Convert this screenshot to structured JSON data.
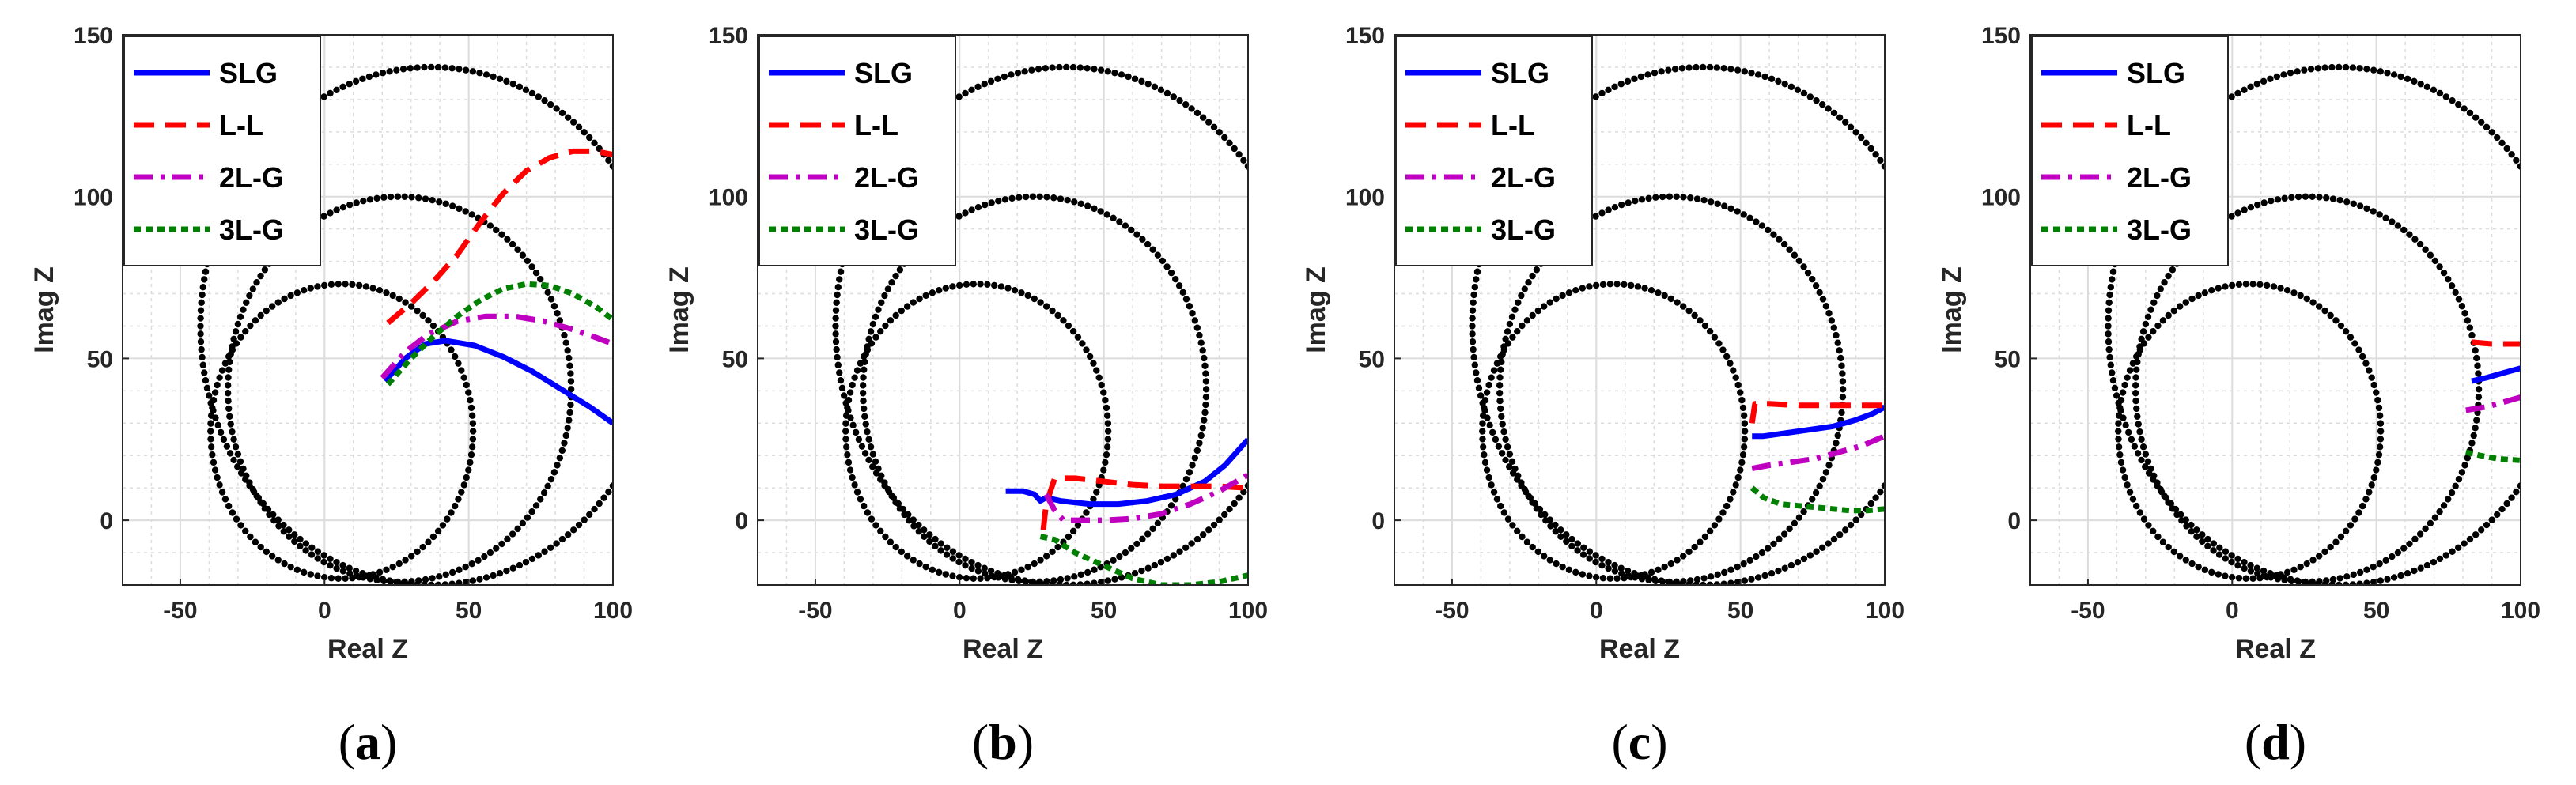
{
  "colors": {
    "SLG": "#0000ff",
    "L-L": "#ff0000",
    "2L-G": "#c000c0",
    "3L-G": "#008000",
    "circles": "#000000",
    "grid": "#dcdcdc"
  },
  "chart_data": [
    {
      "type": "line",
      "panel_label": [
        "(",
        "a",
        ")"
      ],
      "xlabel": "Real Z",
      "ylabel": "Imag Z",
      "xlim": [
        -70,
        100
      ],
      "ylim": [
        -20,
        150
      ],
      "xticks": [
        -50,
        0,
        50,
        100
      ],
      "yticks": [
        0,
        50,
        100,
        150
      ],
      "grid": true,
      "legend_position": "top-left",
      "characteristic_circles": [
        {
          "center": [
            6,
            27.5
          ],
          "radius": 45.5
        },
        {
          "center": [
            26,
            40.5
          ],
          "radius": 59.5
        },
        {
          "center": [
            37,
            60
          ],
          "radius": 80
        }
      ],
      "series": [
        {
          "name": "SLG",
          "style": "solid",
          "x": [
            21,
            28,
            35,
            42,
            52,
            62,
            72,
            82,
            92,
            100
          ],
          "y": [
            43,
            50,
            54.5,
            55.5,
            54,
            50.5,
            46,
            40.5,
            35,
            30
          ]
        },
        {
          "name": "L-L",
          "style": "dashed",
          "x": [
            22,
            30,
            38,
            46,
            54,
            62,
            70,
            78,
            86,
            94,
            100
          ],
          "y": [
            61,
            67,
            74,
            82,
            92,
            101,
            108,
            112,
            114,
            114,
            113
          ]
        },
        {
          "name": "2L-G",
          "style": "dashdot",
          "x": [
            20,
            28,
            36,
            46,
            56,
            66,
            76,
            86,
            94,
            100
          ],
          "y": [
            44,
            52,
            57.5,
            61.5,
            63,
            63,
            61.5,
            59,
            56.5,
            54.5
          ]
        },
        {
          "name": "3L-G",
          "style": "dotted",
          "x": [
            22,
            30,
            38,
            46,
            54,
            62,
            70,
            78,
            86,
            94,
            100
          ],
          "y": [
            42,
            50,
            57,
            63,
            68,
            71.5,
            73,
            72.5,
            70,
            66,
            62
          ]
        }
      ]
    },
    {
      "type": "line",
      "panel_label": [
        "(",
        "b",
        ")"
      ],
      "xlabel": "Real Z",
      "ylabel": "Imag Z",
      "xlim": [
        -70,
        100
      ],
      "ylim": [
        -20,
        150
      ],
      "xticks": [
        -50,
        0,
        50,
        100
      ],
      "yticks": [
        0,
        50,
        100,
        150
      ],
      "grid": true,
      "legend_position": "top-left",
      "characteristic_circles": [
        {
          "center": [
            6,
            27.5
          ],
          "radius": 45.5
        },
        {
          "center": [
            26,
            40.5
          ],
          "radius": 59.5
        },
        {
          "center": [
            37,
            60
          ],
          "radius": 80
        }
      ],
      "series": [
        {
          "name": "SLG",
          "style": "solid",
          "x": [
            16,
            22,
            26,
            28,
            30,
            35,
            45,
            55,
            65,
            75,
            85,
            92,
            100
          ],
          "y": [
            9,
            9,
            8,
            6,
            7,
            6,
            5,
            5,
            6,
            8,
            12,
            17,
            25
          ]
        },
        {
          "name": "L-L",
          "style": "dashed",
          "x": [
            29,
            30,
            33,
            40,
            50,
            60,
            70,
            80,
            90,
            100
          ],
          "y": [
            -3,
            5,
            13,
            13,
            12,
            11,
            10.5,
            10.5,
            10.5,
            10
          ]
        },
        {
          "name": "2L-G",
          "style": "dashdot",
          "x": [
            30,
            33,
            36,
            40,
            50,
            60,
            70,
            80,
            90,
            100
          ],
          "y": [
            8,
            3,
            0,
            0,
            0,
            0.5,
            2,
            5,
            9,
            14
          ]
        },
        {
          "name": "3L-G",
          "style": "dotted",
          "x": [
            28,
            33,
            40,
            50,
            60,
            70,
            80,
            90,
            100
          ],
          "y": [
            -5,
            -6,
            -10,
            -14,
            -18,
            -20,
            -20,
            -19,
            -17
          ]
        }
      ]
    },
    {
      "type": "line",
      "panel_label": [
        "(",
        "c",
        ")"
      ],
      "xlabel": "Real Z",
      "ylabel": "Imag Z",
      "xlim": [
        -70,
        100
      ],
      "ylim": [
        -20,
        150
      ],
      "xticks": [
        -50,
        0,
        50,
        100
      ],
      "yticks": [
        0,
        50,
        100,
        150
      ],
      "grid": true,
      "legend_position": "top-left",
      "characteristic_circles": [
        {
          "center": [
            6,
            27.5
          ],
          "radius": 45.5
        },
        {
          "center": [
            26,
            40.5
          ],
          "radius": 59.5
        },
        {
          "center": [
            37,
            60
          ],
          "radius": 80
        }
      ],
      "series": [
        {
          "name": "SLG",
          "style": "solid",
          "x": [
            54,
            58,
            66,
            74,
            82,
            90,
            96,
            100
          ],
          "y": [
            26,
            26,
            27,
            28,
            29,
            31,
            33,
            35
          ]
        },
        {
          "name": "L-L",
          "style": "dashed",
          "x": [
            54,
            55,
            60,
            70,
            80,
            90,
            100
          ],
          "y": [
            30,
            36,
            36,
            35.5,
            35.5,
            35.5,
            35.5
          ]
        },
        {
          "name": "2L-G",
          "style": "dashdot",
          "x": [
            54,
            60,
            68,
            76,
            84,
            92,
            100
          ],
          "y": [
            16,
            17,
            18,
            19,
            21,
            23,
            26
          ]
        },
        {
          "name": "3L-G",
          "style": "dotted",
          "x": [
            54,
            58,
            64,
            70,
            76,
            82,
            88,
            94,
            100
          ],
          "y": [
            10,
            7,
            5,
            4.5,
            4,
            3.5,
            3,
            3,
            3.5
          ]
        }
      ]
    },
    {
      "type": "line",
      "panel_label": [
        "(",
        "d",
        ")"
      ],
      "xlabel": "Real Z",
      "ylabel": "Imag Z",
      "xlim": [
        -70,
        100
      ],
      "ylim": [
        -20,
        150
      ],
      "xticks": [
        -50,
        0,
        50,
        100
      ],
      "yticks": [
        0,
        50,
        100,
        150
      ],
      "grid": true,
      "legend_position": "top-left",
      "characteristic_circles": [
        {
          "center": [
            6,
            27.5
          ],
          "radius": 45.5
        },
        {
          "center": [
            26,
            40.5
          ],
          "radius": 59.5
        },
        {
          "center": [
            37,
            60
          ],
          "radius": 80
        }
      ],
      "series": [
        {
          "name": "SLG",
          "style": "solid",
          "x": [
            83,
            88,
            94,
            100
          ],
          "y": [
            43,
            44,
            45.5,
            47
          ]
        },
        {
          "name": "L-L",
          "style": "dashed",
          "x": [
            83,
            90,
            100
          ],
          "y": [
            55,
            54.5,
            54.5
          ]
        },
        {
          "name": "2L-G",
          "style": "dashdot",
          "x": [
            81,
            88,
            94,
            100
          ],
          "y": [
            34,
            35,
            36.5,
            38
          ]
        },
        {
          "name": "3L-G",
          "style": "dotted",
          "x": [
            81,
            86,
            92,
            100
          ],
          "y": [
            21,
            20,
            19,
            18.5
          ]
        }
      ]
    }
  ]
}
